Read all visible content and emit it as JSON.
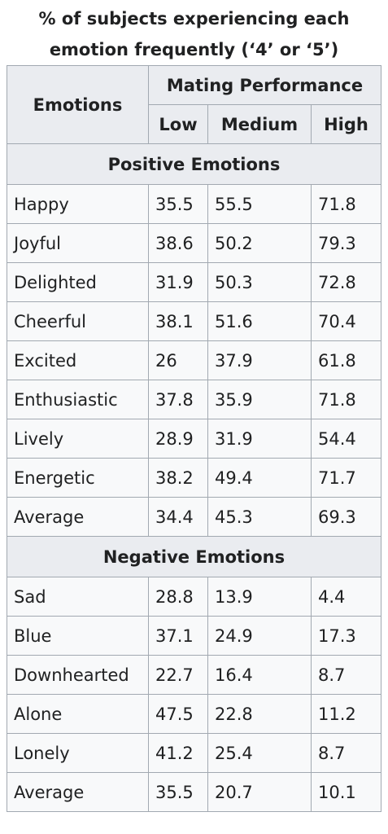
{
  "caption": "% of subjects experiencing each emotion frequently (‘4’ or ‘5’)",
  "header": {
    "emotions": "Emotions",
    "mating_performance": "Mating Performance",
    "low": "Low",
    "medium": "Medium",
    "high": "High"
  },
  "positive": {
    "title": "Positive Emotions",
    "rows": [
      {
        "emotion": "Happy",
        "low": "35.5",
        "medium": "55.5",
        "high": "71.8"
      },
      {
        "emotion": "Joyful",
        "low": "38.6",
        "medium": "50.2",
        "high": "79.3"
      },
      {
        "emotion": "Delighted",
        "low": "31.9",
        "medium": "50.3",
        "high": "72.8"
      },
      {
        "emotion": "Cheerful",
        "low": "38.1",
        "medium": "51.6",
        "high": "70.4"
      },
      {
        "emotion": "Excited",
        "low": "26",
        "medium": "37.9",
        "high": "61.8"
      },
      {
        "emotion": "Enthusiastic",
        "low": "37.8",
        "medium": "35.9",
        "high": "71.8"
      },
      {
        "emotion": "Lively",
        "low": "28.9",
        "medium": "31.9",
        "high": "54.4"
      },
      {
        "emotion": "Energetic",
        "low": "38.2",
        "medium": "49.4",
        "high": "71.7"
      },
      {
        "emotion": "Average",
        "low": "34.4",
        "medium": "45.3",
        "high": "69.3"
      }
    ]
  },
  "negative": {
    "title": "Negative Emotions",
    "rows": [
      {
        "emotion": "Sad",
        "low": "28.8",
        "medium": "13.9",
        "high": "4.4"
      },
      {
        "emotion": "Blue",
        "low": "37.1",
        "medium": "24.9",
        "high": "17.3"
      },
      {
        "emotion": "Downhearted",
        "low": "22.7",
        "medium": "16.4",
        "high": "8.7"
      },
      {
        "emotion": "Alone",
        "low": "47.5",
        "medium": "22.8",
        "high": "11.2"
      },
      {
        "emotion": "Lonely",
        "low": "41.2",
        "medium": "25.4",
        "high": "8.7"
      },
      {
        "emotion": "Average",
        "low": "35.5",
        "medium": "20.7",
        "high": "10.1"
      }
    ]
  }
}
